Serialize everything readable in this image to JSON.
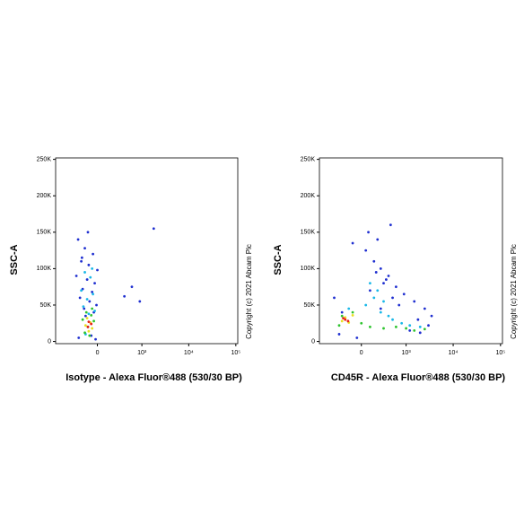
{
  "chart_data": [
    {
      "type": "scatter",
      "x_label": "Isotype - Alexa Fluor®488 (530/30 BP)",
      "y_label": "SSC-A",
      "note": "Copyright (c) 2021 Abcam Plc",
      "xlim": [
        -870,
        110000
      ],
      "ylim": [
        -3000,
        252000
      ],
      "xticks": [
        0,
        {
          "value": 1000,
          "label": "10³"
        },
        {
          "value": 10000,
          "label": "10⁴"
        },
        {
          "value": 100000,
          "label": "10⁵"
        }
      ],
      "yticks": [
        0,
        {
          "value": 50000,
          "label": "50K"
        },
        {
          "value": 100000,
          "label": "100K"
        },
        {
          "value": 150000,
          "label": "150K"
        },
        {
          "value": 200000,
          "label": "200K"
        },
        {
          "value": 250000,
          "label": "250K"
        }
      ],
      "series": [
        {
          "color": "#1f2fd0",
          "x": [
            -250,
            -150,
            -50,
            -200,
            -100,
            0,
            -280,
            -120,
            -30,
            -180,
            -60,
            -220,
            -90,
            -10,
            -160,
            -40,
            -140,
            -70,
            -240,
            -20,
            600,
            900,
            1800,
            400,
            -110,
            -190
          ],
          "y": [
            140000,
            128000,
            120000,
            110000,
            105000,
            98000,
            90000,
            85000,
            80000,
            72000,
            68000,
            60000,
            55000,
            50000,
            45000,
            40000,
            35000,
            8000,
            5000,
            3000,
            75000,
            55000,
            155000,
            62000,
            150000,
            115000
          ]
        },
        {
          "color": "#19b8e8",
          "x": [
            -150,
            -80,
            -200,
            -50,
            -120,
            -170,
            -30,
            -100,
            -60,
            -140
          ],
          "y": [
            95000,
            88000,
            70000,
            65000,
            58000,
            48000,
            42000,
            38000,
            100000,
            10000
          ]
        },
        {
          "color": "#2ec42e",
          "x": [
            -130,
            -70,
            -180,
            -40,
            -110,
            -150,
            -90,
            -60
          ],
          "y": [
            40000,
            36000,
            30000,
            28000,
            20000,
            12000,
            8000,
            45000
          ]
        },
        {
          "color": "#e8e020",
          "x": [
            -120,
            -80,
            -140,
            -60,
            -100
          ],
          "y": [
            32000,
            26000,
            22000,
            18000,
            14000
          ]
        },
        {
          "color": "#e82018",
          "x": [
            -100,
            -70,
            -110
          ],
          "y": [
            27000,
            24000,
            20000
          ]
        }
      ]
    },
    {
      "type": "scatter",
      "x_label": "CD45R - Alexa Fluor®488 (530/30 BP)",
      "y_label": "SSC-A",
      "note": "Copyright (c) 2021 Abcam Plc",
      "xlim": [
        -870,
        110000
      ],
      "ylim": [
        -3000,
        252000
      ],
      "xticks": [
        0,
        {
          "value": 1000,
          "label": "10³"
        },
        {
          "value": 10000,
          "label": "10⁴"
        },
        {
          "value": 100000,
          "label": "10⁵"
        }
      ],
      "yticks": [
        0,
        {
          "value": 50000,
          "label": "50K"
        },
        {
          "value": 100000,
          "label": "100K"
        },
        {
          "value": 150000,
          "label": "150K"
        },
        {
          "value": 200000,
          "label": "200K"
        },
        {
          "value": 250000,
          "label": "250K"
        }
      ],
      "series": [
        {
          "color": "#1f2fd0",
          "x": [
            -400,
            -250,
            -100,
            50,
            150,
            250,
            400,
            600,
            900,
            1500,
            2500,
            3500,
            200,
            80,
            300,
            -50,
            1200,
            2000,
            700,
            100,
            180,
            350,
            500,
            -300,
            3000,
            1800,
            450,
            250
          ],
          "y": [
            60000,
            40000,
            135000,
            125000,
            110000,
            100000,
            90000,
            75000,
            65000,
            55000,
            45000,
            35000,
            140000,
            150000,
            80000,
            5000,
            15000,
            12000,
            50000,
            70000,
            95000,
            85000,
            60000,
            10000,
            22000,
            30000,
            160000,
            45000
          ]
        },
        {
          "color": "#19b8e8",
          "x": [
            100,
            200,
            150,
            300,
            50,
            250,
            500,
            800,
            1200,
            2000,
            400,
            -150
          ],
          "y": [
            80000,
            70000,
            60000,
            55000,
            50000,
            40000,
            30000,
            25000,
            22000,
            20000,
            35000,
            45000
          ]
        },
        {
          "color": "#2ec42e",
          "x": [
            -250,
            -100,
            0,
            100,
            300,
            600,
            1000,
            1500,
            2500,
            -300
          ],
          "y": [
            35000,
            40000,
            25000,
            20000,
            18000,
            20000,
            18000,
            15000,
            17000,
            22000
          ]
        },
        {
          "color": "#e8e020",
          "x": [
            -200,
            -150,
            -250,
            -100
          ],
          "y": [
            33000,
            26000,
            28000,
            36000
          ]
        },
        {
          "color": "#e82018",
          "x": [
            -200,
            -160,
            -230
          ],
          "y": [
            30000,
            28000,
            32000
          ]
        }
      ]
    }
  ]
}
